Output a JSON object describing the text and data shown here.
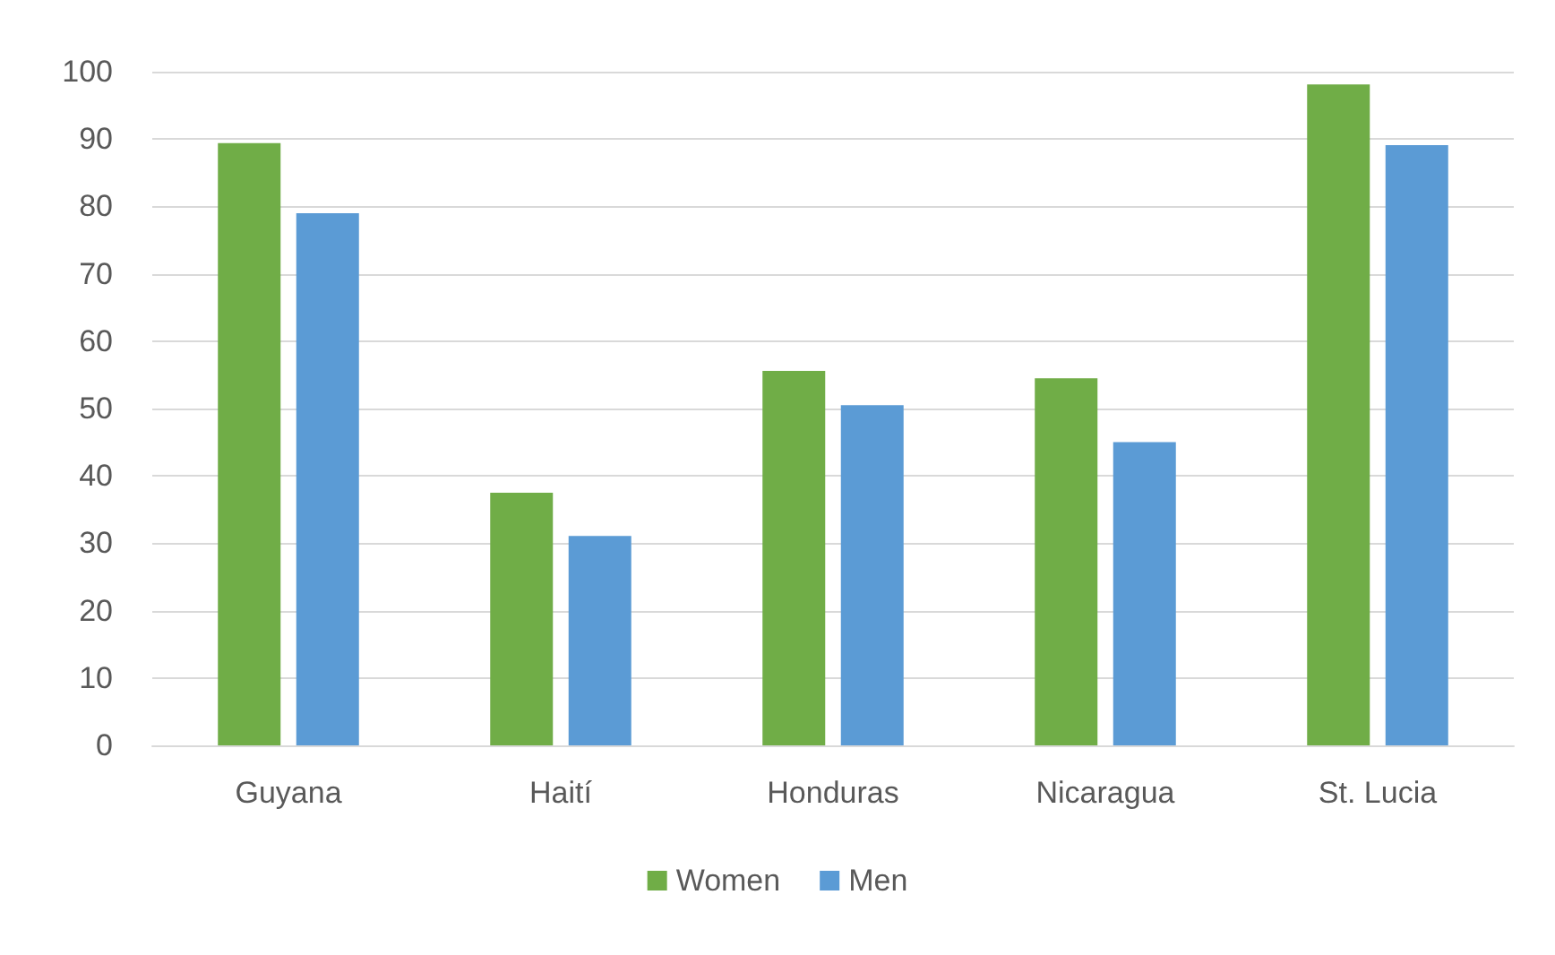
{
  "chart_data": {
    "type": "bar",
    "categories": [
      "Guyana",
      "Haití",
      "Honduras",
      "Nicaragua",
      "St. Lucia"
    ],
    "series": [
      {
        "name": "Women",
        "color": "#70ad47",
        "values": [
          89.4,
          37.5,
          55.6,
          54.5,
          98.1
        ]
      },
      {
        "name": "Men",
        "color": "#5b9bd5",
        "values": [
          79,
          31.1,
          50.5,
          45,
          89.1
        ]
      }
    ],
    "ylim": [
      0,
      100
    ],
    "yticks": [
      0,
      10,
      20,
      30,
      40,
      50,
      60,
      70,
      80,
      90,
      100
    ],
    "grid": "y",
    "legend": "bottom"
  }
}
